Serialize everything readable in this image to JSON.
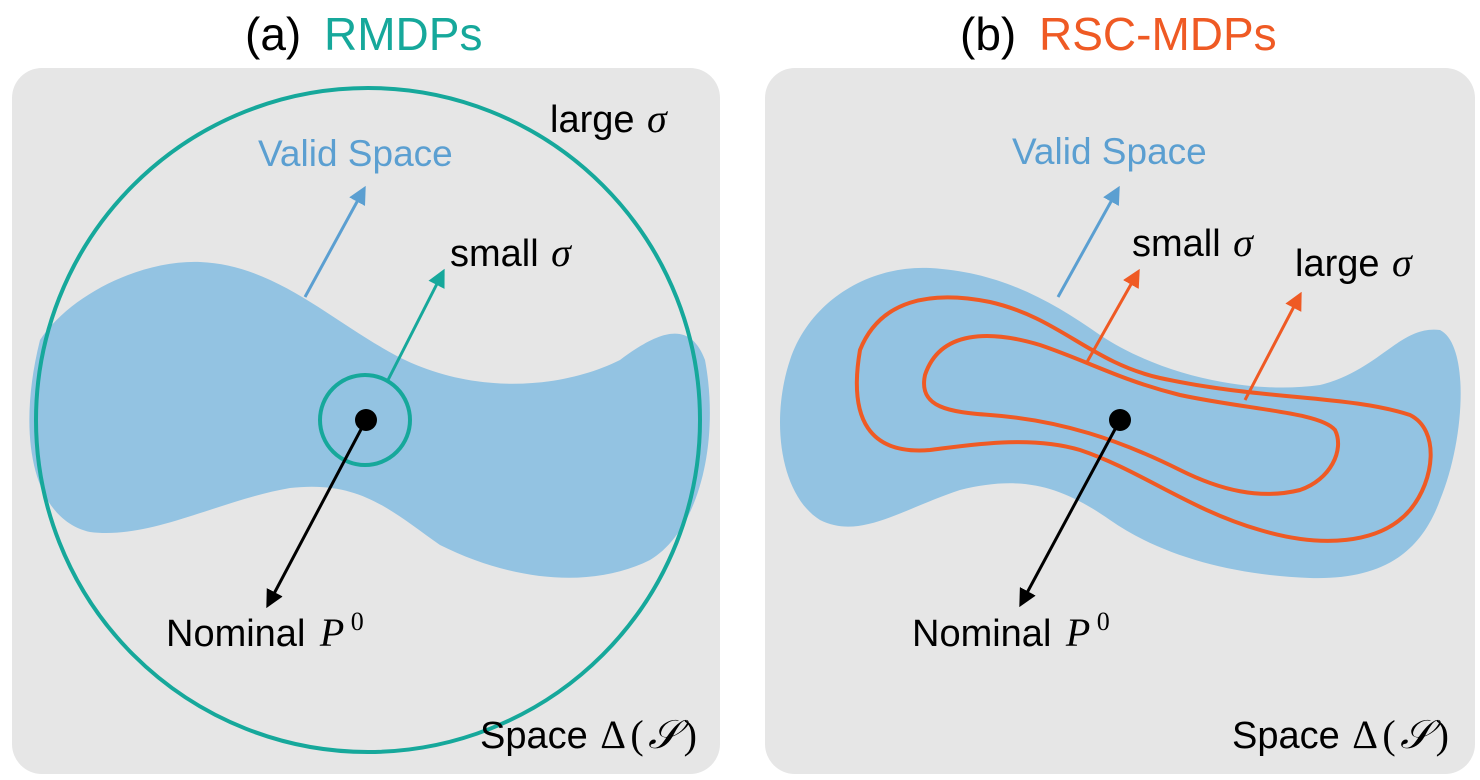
{
  "colors": {
    "panel_bg": "#e6e6e6",
    "valid_space": "#93c3e2",
    "valid_label": "#5b9fd1",
    "rmdp_accent": "#16a89b",
    "rsc_accent": "#ef5a24",
    "point": "#000000"
  },
  "panel_a": {
    "title_prefix": "(a)",
    "title": "RMDPs",
    "valid_label": "Valid Space",
    "small_label": "small",
    "large_label": "large",
    "sigma": "σ",
    "nominal_label": "Nominal",
    "nominal_symbol": "P",
    "nominal_sup": "0",
    "space_label": "Space",
    "space_delta": "Δ",
    "space_paren_open": "(",
    "space_set": "𝒮",
    "space_paren_close": ")"
  },
  "panel_b": {
    "title_prefix": "(b)",
    "title": "RSC-MDPs",
    "valid_label": "Valid Space",
    "small_label": "small",
    "large_label": "large",
    "sigma": "σ",
    "nominal_label": "Nominal",
    "nominal_symbol": "P",
    "nominal_sup": "0",
    "space_label": "Space",
    "space_delta": "Δ",
    "space_paren_open": "(",
    "space_set": "𝒮",
    "space_paren_close": ")"
  }
}
